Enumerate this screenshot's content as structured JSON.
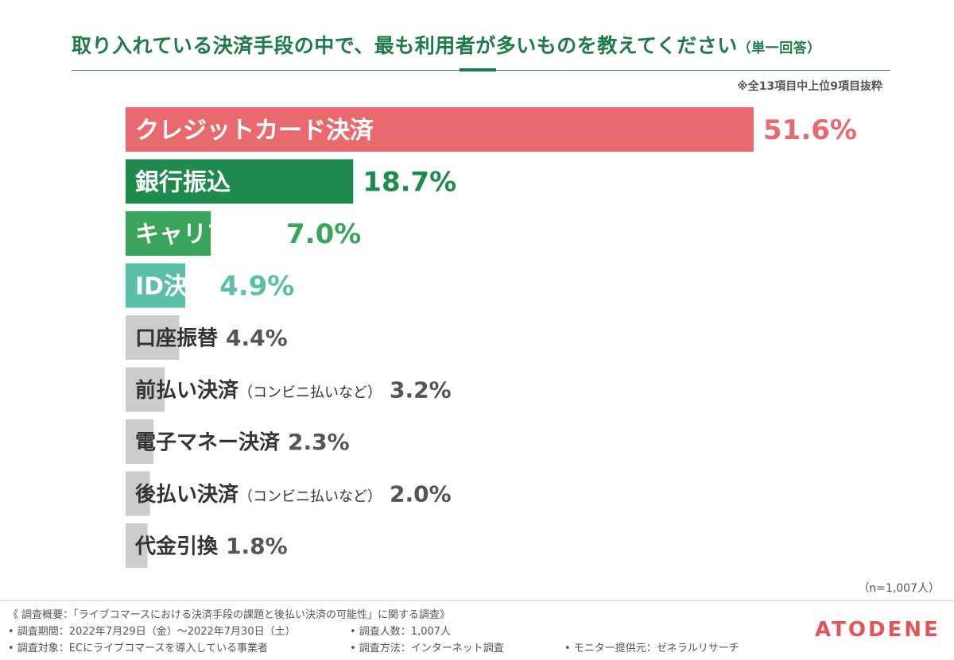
{
  "title": {
    "main": "取り入れている決済手段の中で、最も利用者が多いものを教えてください",
    "sub": "（単一回答）"
  },
  "note": "※全13項目中上位9項目抜粋",
  "sample_size": "（n=1,007人）",
  "footer": {
    "overview": "《 調査概要：「ライブコマースにおける決済手段の課題と後払い決済の可能性」に関する調査》",
    "period": "• 調査期間：2022年7月29日（金）〜2022年7月30日（土）",
    "respondents": "• 調査人数：1,007人",
    "target": "• 調査対象：ECにライブコマースを導入している事業者",
    "method": "• 調査方法：インターネット調査",
    "provider": "• モニター提供元：ゼネラルリサーチ"
  },
  "logo": "ATODENE",
  "colors": {
    "accent": "#1e7a46",
    "credit": "#e86a6e",
    "bank": "#1e8a4c",
    "carrier": "#3aa55a",
    "id": "#5bbfa8",
    "gray": "#cccccc",
    "logo": "#e2535a"
  },
  "chart_data": {
    "type": "bar",
    "orientation": "horizontal",
    "title": "取り入れている決済手段の中で、最も利用者が多いものを教えてください（単一回答）",
    "categories": [
      "クレジットカード決済",
      "銀行振込",
      "キャリア決済",
      "ID決済",
      "口座振替",
      "前払い決済",
      "電子マネー決済",
      "後払い決済",
      "代金引換"
    ],
    "category_notes": [
      "",
      "",
      "",
      "",
      "",
      "（コンビニ払いなど）",
      "",
      "（コンビニ払いなど）",
      ""
    ],
    "values": [
      51.6,
      18.7,
      7.0,
      4.9,
      4.4,
      3.2,
      2.3,
      2.0,
      1.8
    ],
    "value_labels": [
      "51.6%",
      "18.7%",
      "7.0%",
      "4.9%",
      "4.4%",
      "3.2%",
      "2.3%",
      "2.0%",
      "1.8%"
    ],
    "bar_colors": [
      "#e86a6e",
      "#1e8a4c",
      "#3aa55a",
      "#5bbfa8",
      "#cccccc",
      "#cccccc",
      "#cccccc",
      "#cccccc",
      "#cccccc"
    ],
    "label_colors": [
      "#ffffff",
      "#ffffff",
      "#ffffff",
      "#ffffff",
      "#333333",
      "#333333",
      "#333333",
      "#333333",
      "#333333"
    ],
    "value_colors": [
      "#e86a6e",
      "#1e8a4c",
      "#3aa55a",
      "#5bbfa8",
      "#555555",
      "#555555",
      "#555555",
      "#555555",
      "#555555"
    ],
    "unit": "%",
    "xlim": [
      0,
      51.6
    ],
    "grid": false,
    "legend": "none"
  }
}
